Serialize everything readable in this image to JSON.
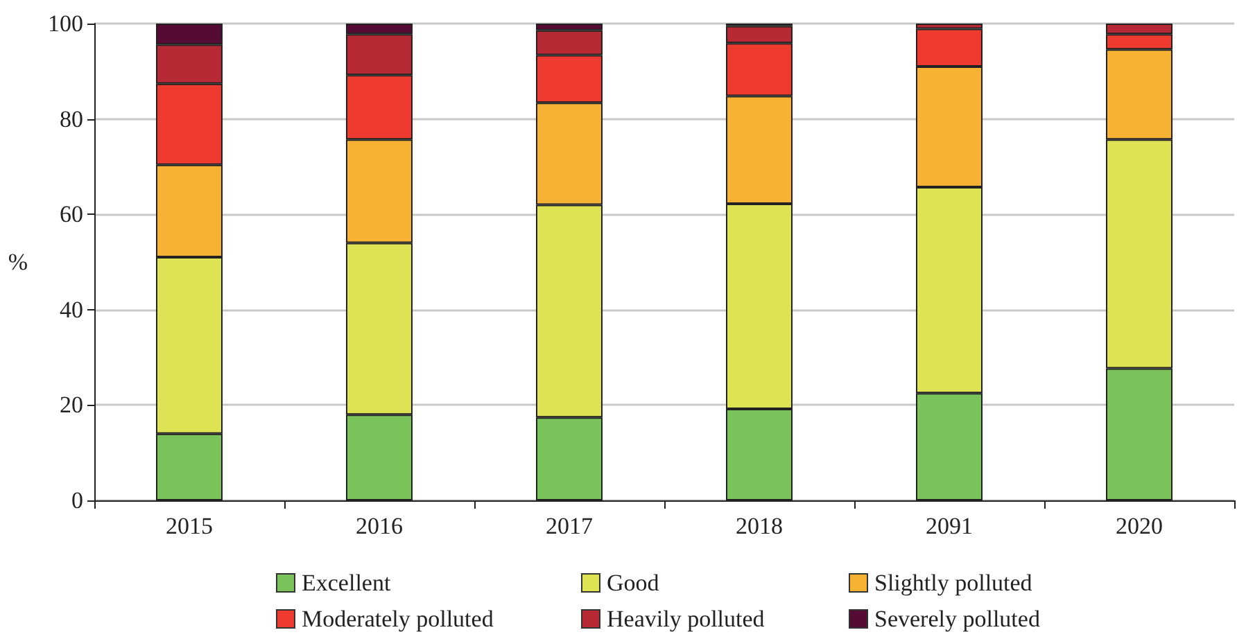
{
  "chart_data": {
    "type": "bar",
    "stacked": true,
    "ylabel": "%",
    "categories": [
      "2015",
      "2016",
      "2017",
      "2018",
      "2091",
      "2020"
    ],
    "series": [
      {
        "name": "Excellent",
        "color": "#7ac35a",
        "values": [
          14,
          18,
          17.4,
          19.2,
          22.5,
          27.7
        ]
      },
      {
        "name": "Good",
        "color": "#dee353",
        "values": [
          37,
          36,
          44.6,
          43,
          43.2,
          48
        ]
      },
      {
        "name": "Slightly polluted",
        "color": "#f7b234",
        "values": [
          19.4,
          21.7,
          21.4,
          22.6,
          25.3,
          18.9
        ]
      },
      {
        "name": "Moderately polluted",
        "color": "#ef3a2f",
        "values": [
          17,
          13.5,
          10,
          11.1,
          7.9,
          3.2
        ]
      },
      {
        "name": "Heavily polluted",
        "color": "#b72a35",
        "values": [
          8.2,
          8.6,
          5.2,
          3.6,
          1.1,
          2.2
        ]
      },
      {
        "name": "Severely polluted",
        "color": "#560b35",
        "values": [
          4.4,
          2.2,
          1.4,
          0.5,
          0,
          0
        ]
      }
    ],
    "ylim": [
      0,
      100
    ],
    "yticks": [
      0,
      20,
      40,
      60,
      80,
      100
    ],
    "grid": "y",
    "legend": "bottom"
  }
}
